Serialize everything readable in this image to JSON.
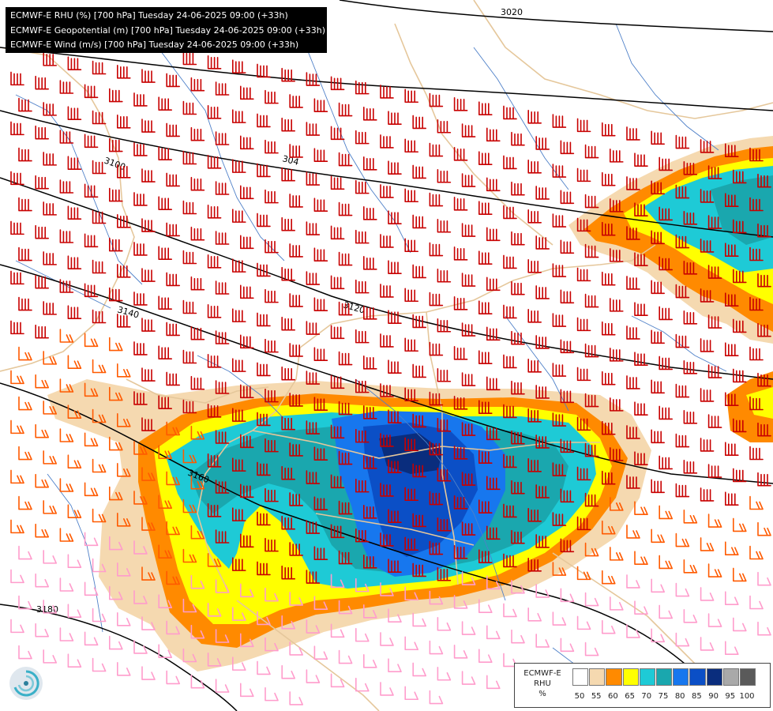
{
  "header": {
    "lines": [
      "ECMWF-E RHU (%) [700 hPa] Tuesday 24-06-2025 09:00 (+33h)",
      "ECMWF-E Geopotential (m) [700 hPa] Tuesday 24-06-2025 09:00 (+33h)",
      "ECMWF-E Wind (m/s) [700 hPa] Tuesday 24-06-2025 09:00 (+33h)"
    ]
  },
  "contour_labels": [
    "3020",
    "3100",
    "304",
    "3120",
    "3140",
    "3160",
    "3180"
  ],
  "legend": {
    "title_lines": [
      "ECMWF-E",
      "RHU",
      "%"
    ],
    "ticks": [
      "50",
      "55",
      "60",
      "65",
      "70",
      "75",
      "80",
      "85",
      "90",
      "95",
      "100"
    ],
    "colors": [
      "#ffffff",
      "#f5d9b0",
      "#ff8a00",
      "#ffff00",
      "#1ecad6",
      "#1aa7ae",
      "#1777ee",
      "#0b4fc6",
      "#0a2d7d",
      "#a9a9a9",
      "#5a5a5a"
    ]
  },
  "logo": {
    "icon": "ecmwf-swirl-logo"
  },
  "colors": {
    "border": "#e5c79b",
    "river": "#4f80c8",
    "wind_strong": "#c80000",
    "wind_medium": "#ff5a00",
    "wind_weak": "#ff9ccc",
    "contour": "#000000"
  }
}
